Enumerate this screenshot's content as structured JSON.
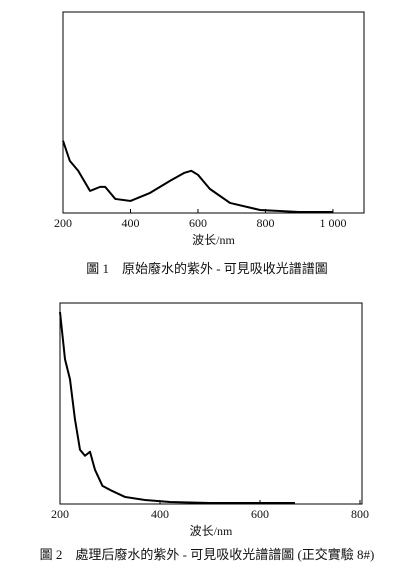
{
  "chart_data": [
    {
      "type": "line",
      "xlabel": "波长/nm",
      "caption": "圖 1　原始廢水的紫外 - 可見吸收光譜譜圖",
      "x": [
        200,
        220,
        245,
        280,
        310,
        325,
        355,
        400,
        458,
        517,
        560,
        580,
        600,
        635,
        695,
        784,
        900,
        1000
      ],
      "values": [
        0.36,
        0.26,
        0.21,
        0.11,
        0.13,
        0.13,
        0.07,
        0.06,
        0.1,
        0.16,
        0.2,
        0.21,
        0.19,
        0.12,
        0.05,
        0.015,
        0.005,
        0.005
      ],
      "color": "#000000",
      "xlim": [
        200,
        1092
      ],
      "ylim": [
        0,
        1
      ],
      "xticks": [
        200,
        400,
        600,
        800,
        {
          "value": 1000,
          "label": "1 000"
        }
      ]
    },
    {
      "type": "line",
      "xlabel": "波长/nm",
      "caption": "圖 2　處理后廢水的紫外 - 可見吸收光譜譜圖 (正交實驗 8#)",
      "x": [
        200,
        210,
        220,
        230,
        240,
        250,
        260,
        270,
        285,
        300,
        330,
        370,
        420,
        500,
        600,
        670
      ],
      "values": [
        0.955,
        0.72,
        0.62,
        0.42,
        0.27,
        0.24,
        0.26,
        0.17,
        0.09,
        0.07,
        0.035,
        0.02,
        0.01,
        0.005,
        0.005,
        0.005
      ],
      "color": "#000000",
      "xlim": [
        200,
        804
      ],
      "ylim": [
        0,
        1
      ],
      "xticks": [
        200,
        400,
        600,
        800
      ]
    }
  ]
}
